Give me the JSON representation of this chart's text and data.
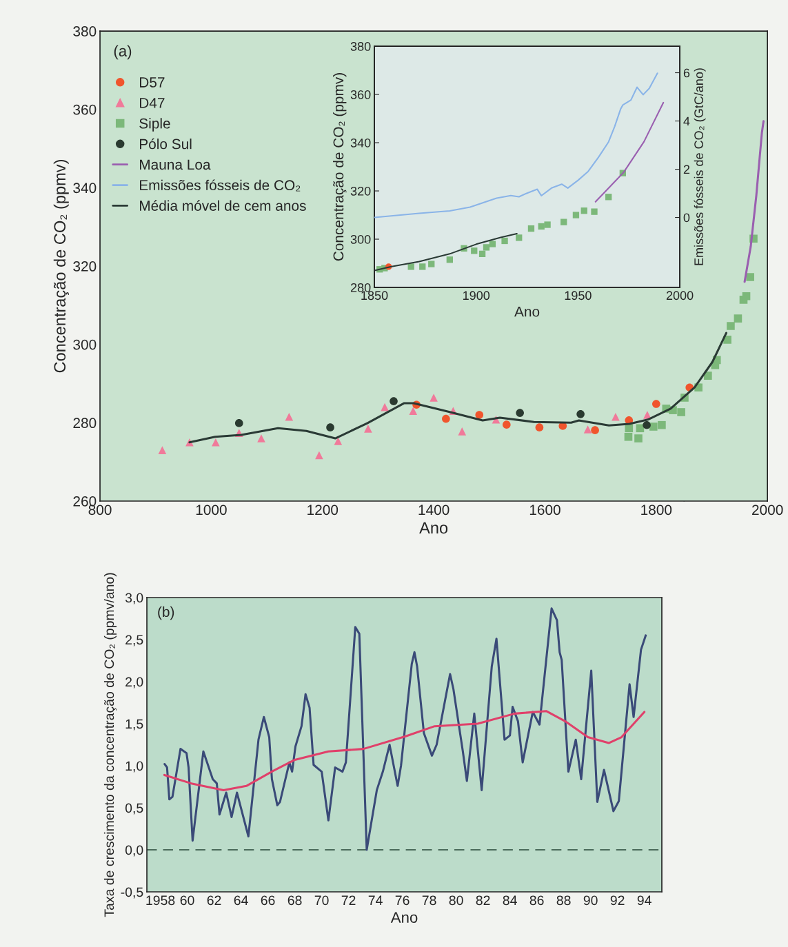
{
  "chart_data": [
    {
      "type": "scatter",
      "xlabel": "Ano",
      "ylabel": "Concentração de CO₂ (ppmv)",
      "xlim": [
        800,
        2000
      ],
      "ylim": [
        260,
        380
      ],
      "xticks": [
        800,
        1000,
        1200,
        1400,
        1600,
        1800,
        2000
      ],
      "yticks": [
        260,
        280,
        300,
        320,
        340,
        360,
        380
      ],
      "grid": false,
      "legend": "top left",
      "annotations": [
        "(a)"
      ],
      "series": [
        {
          "name": "D57",
          "marker": "circle",
          "color": "#f0552d",
          "x": [
            1369,
            1422,
            1482,
            1531,
            1590,
            1632,
            1690,
            1751,
            1800,
            1860
          ],
          "values": [
            284.6,
            281,
            282,
            279.5,
            278.8,
            279.2,
            278.1,
            280.6,
            284.8,
            289
          ]
        },
        {
          "name": "D47",
          "marker": "triangle",
          "color": "#f07a9a",
          "x": [
            912,
            961,
            1008,
            1050,
            1090,
            1140,
            1194,
            1228,
            1282,
            1312,
            1363,
            1400,
            1435,
            1451,
            1512,
            1677,
            1727,
            1784
          ],
          "values": [
            273,
            275,
            275,
            277.4,
            276,
            281.5,
            271.7,
            275.3,
            278.5,
            284,
            283,
            286.4,
            283,
            277.8,
            280.8,
            278.3,
            281.5,
            282
          ]
        },
        {
          "name": "Siple",
          "marker": "square",
          "color": "#7cb87a",
          "x": [
            1750,
            1751,
            1768,
            1771,
            1795,
            1810,
            1818,
            1830,
            1845,
            1851,
            1876,
            1893,
            1906,
            1909,
            1928,
            1934,
            1947,
            1957,
            1962,
            1969,
            1975
          ],
          "values": [
            276.4,
            278.6,
            276,
            278.6,
            279,
            279.4,
            283.6,
            283.2,
            282.7,
            286.4,
            289,
            292,
            294.7,
            296,
            301.2,
            304.7,
            306.6,
            311.4,
            312.3,
            317.2,
            327
          ]
        },
        {
          "name": "Pólo Sul",
          "marker": "circle",
          "color": "#2a3a30",
          "x": [
            1050,
            1214,
            1328,
            1555,
            1664,
            1783
          ],
          "values": [
            279.9,
            278.8,
            285.5,
            282.5,
            282.2,
            279.4
          ]
        },
        {
          "name": "Mauna Loa",
          "type": "line",
          "color": "#9a5fb0",
          "x": [
            1959,
            1970,
            1980,
            1990,
            1993
          ],
          "values": [
            316,
            325,
            338,
            354,
            357
          ]
        },
        {
          "name": "Média móvel de cem anos",
          "type": "line",
          "color": "#2a3a35",
          "x": [
            961,
            1007,
            1054,
            1120,
            1171,
            1223,
            1281,
            1347,
            1364,
            1430,
            1488,
            1519,
            1580,
            1647,
            1661,
            1715,
            1752,
            1785,
            1826,
            1869,
            1901,
            1926
          ],
          "values": [
            275,
            276.4,
            276.9,
            278.6,
            277.9,
            276,
            279.9,
            285,
            285,
            282.7,
            280.6,
            281.3,
            280.2,
            280,
            280.6,
            279.3,
            279.7,
            280.8,
            283.6,
            289,
            295.5,
            302.9
          ]
        }
      ]
    },
    {
      "type": "line",
      "xlabel": "Ano",
      "ylabel": "Concentração de CO₂ (ppmv)",
      "y2label": "Emissões fósseis de CO₂ (GtC/ano)",
      "xlim": [
        1850,
        2000
      ],
      "ylim": [
        280,
        380
      ],
      "xticks": [
        1850,
        1900,
        1950,
        2000
      ],
      "yticks": [
        280,
        300,
        320,
        340,
        360,
        380
      ],
      "y2lim": [
        -2.9,
        7.1
      ],
      "y2ticks": [
        0,
        2,
        4,
        6
      ],
      "grid": false,
      "series": [
        {
          "name": "Emissões fósseis de CO₂",
          "axis": "y2",
          "color": "#8ab4e8",
          "x": [
            1850,
            1872,
            1887,
            1897,
            1910,
            1917,
            1921,
            1925,
            1930,
            1932,
            1937,
            1942,
            1945,
            1950,
            1955,
            1960,
            1965,
            1968,
            1971,
            1972,
            1976,
            1979,
            1982,
            1985,
            1989
          ],
          "values": [
            0.0,
            0.17,
            0.27,
            0.43,
            0.8,
            0.91,
            0.86,
            1.01,
            1.17,
            0.9,
            1.22,
            1.38,
            1.22,
            1.54,
            1.91,
            2.49,
            3.13,
            3.77,
            4.51,
            4.66,
            4.87,
            5.4,
            5.09,
            5.35,
            5.98
          ]
        },
        {
          "color": "#9a5fb0",
          "x": [
            1958.6,
            1972.4,
            1982.4,
            1991.9
          ],
          "values": [
            315.5,
            327.7,
            340.4,
            356.6
          ]
        },
        {
          "color": "#2a3a35",
          "x": [
            1850,
            1858,
            1872,
            1887,
            1900,
            1912,
            1920
          ],
          "values": [
            287,
            288.6,
            290.7,
            293.9,
            297.9,
            300.7,
            302.3
          ]
        },
        {
          "type": "scatter",
          "marker": "square",
          "color": "#7cb87a",
          "x": [
            1852.6,
            1855,
            1868,
            1873.6,
            1878,
            1887,
            1894,
            1899,
            1903,
            1905,
            1908,
            1914,
            1921,
            1927,
            1932,
            1935,
            1943,
            1949,
            1953,
            1958,
            1965,
            1972
          ],
          "values": [
            287.5,
            288,
            288.6,
            288.6,
            289.7,
            291.5,
            296.2,
            295.2,
            293.9,
            296.6,
            298,
            299.3,
            300.6,
            304.4,
            305.3,
            306,
            307.1,
            310,
            311.8,
            311.4,
            317.5,
            327.4
          ]
        },
        {
          "type": "scatter",
          "marker": "circle",
          "color": "#f0552d",
          "x": [
            1857
          ],
          "values": [
            288.6
          ]
        }
      ]
    },
    {
      "type": "line",
      "xlabel": "Ano",
      "ylabel": "Taxa de crescimento da concentração de CO₂ (ppmv/ano)",
      "xlim": [
        1957,
        1995.3
      ],
      "ylim": [
        -0.5,
        3.0
      ],
      "xticks": [
        {
          "value": 1958,
          "label": "1958"
        },
        {
          "value": 1960,
          "label": "60"
        },
        {
          "value": 1962,
          "label": "62"
        },
        {
          "value": 1964,
          "label": "64"
        },
        {
          "value": 1966,
          "label": "66"
        },
        {
          "value": 1968,
          "label": "68"
        },
        {
          "value": 1970,
          "label": "70"
        },
        {
          "value": 1972,
          "label": "72"
        },
        {
          "value": 1974,
          "label": "74"
        },
        {
          "value": 1976,
          "label": "76"
        },
        {
          "value": 1978,
          "label": "78"
        },
        {
          "value": 1980,
          "label": "80"
        },
        {
          "value": 1982,
          "label": "82"
        },
        {
          "value": 1984,
          "label": "84"
        },
        {
          "value": 1986,
          "label": "86"
        },
        {
          "value": 1988,
          "label": "88"
        },
        {
          "value": 1990,
          "label": "90"
        },
        {
          "value": 1992,
          "label": "92"
        },
        {
          "value": 1994,
          "label": "94"
        }
      ],
      "yticks": [
        {
          "value": -0.5,
          "label": "-0,5"
        },
        {
          "value": 0,
          "label": "0,0"
        },
        {
          "value": 0.5,
          "label": "0,5"
        },
        {
          "value": 1.0,
          "label": "1,0"
        },
        {
          "value": 1.5,
          "label": "1,5"
        },
        {
          "value": 2.0,
          "label": "2,0"
        },
        {
          "value": 2.5,
          "label": "2,5"
        },
        {
          "value": 3.0,
          "label": "3,0"
        }
      ],
      "grid": false,
      "annotations": [
        "(b)"
      ],
      "ref_lines": [
        {
          "axis": "y",
          "value": 0,
          "color": "#4a6a5a",
          "line_style": "dashed"
        }
      ],
      "series": [
        {
          "color": "#3a4a78",
          "x": [
            1958.32,
            1958.5,
            1958.67,
            1958.9,
            1959.5,
            1959.95,
            1960.1,
            1960.4,
            1961.2,
            1961.9,
            1962.2,
            1962.4,
            1962.9,
            1963.3,
            1963.7,
            1964.55,
            1965.3,
            1965.7,
            1966.1,
            1966.3,
            1966.7,
            1966.9,
            1967.6,
            1967.8,
            1968.05,
            1968.5,
            1968.8,
            1969.1,
            1969.4,
            1970.0,
            1970.5,
            1971.0,
            1971.55,
            1971.8,
            1972.5,
            1972.8,
            1973.35,
            1974.1,
            1974.55,
            1975.05,
            1975.65,
            1975.9,
            1976.7,
            1976.9,
            1977.1,
            1977.6,
            1978.2,
            1978.55,
            1979.55,
            1979.8,
            1980.5,
            1980.8,
            1981.35,
            1981.9,
            1982.65,
            1983.0,
            1983.6,
            1984.0,
            1984.2,
            1984.6,
            1984.95,
            1985.7,
            1986.2,
            1987.1,
            1987.5,
            1987.7,
            1987.85,
            1988.35,
            1988.9,
            1989.3,
            1990.05,
            1990.5,
            1991.0,
            1991.7,
            1992.1,
            1992.9,
            1993.2,
            1993.75,
            1994.1
          ],
          "values": [
            1.02,
            0.98,
            0.6,
            0.63,
            1.2,
            1.15,
            0.98,
            0.11,
            1.17,
            0.84,
            0.79,
            0.42,
            0.68,
            0.39,
            0.68,
            0.16,
            1.31,
            1.58,
            1.34,
            0.84,
            0.53,
            0.57,
            1.04,
            0.93,
            1.23,
            1.47,
            1.85,
            1.69,
            1.01,
            0.93,
            0.35,
            0.98,
            0.93,
            1.04,
            2.65,
            2.57,
            0.0,
            0.71,
            0.93,
            1.25,
            0.76,
            1.0,
            2.21,
            2.35,
            2.18,
            1.39,
            1.12,
            1.25,
            2.09,
            1.91,
            1.17,
            0.82,
            1.62,
            0.71,
            2.18,
            2.51,
            1.31,
            1.36,
            1.7,
            1.53,
            1.04,
            1.64,
            1.49,
            2.87,
            2.73,
            2.35,
            2.26,
            0.93,
            1.31,
            0.84,
            2.13,
            0.57,
            0.95,
            0.46,
            0.58,
            1.97,
            1.58,
            2.38,
            2.55
          ]
        },
        {
          "color": "#e0406a",
          "x": [
            1958.3,
            1960.3,
            1962.7,
            1964.4,
            1966.4,
            1968.0,
            1970.5,
            1973.1,
            1976.25,
            1978.4,
            1981.6,
            1984.35,
            1986.7,
            1988.1,
            1989.8,
            1991.35,
            1992.3,
            1994.0
          ],
          "values": [
            0.89,
            0.79,
            0.71,
            0.76,
            0.94,
            1.07,
            1.17,
            1.2,
            1.35,
            1.47,
            1.5,
            1.62,
            1.65,
            1.53,
            1.34,
            1.27,
            1.34,
            1.64
          ]
        }
      ]
    }
  ]
}
